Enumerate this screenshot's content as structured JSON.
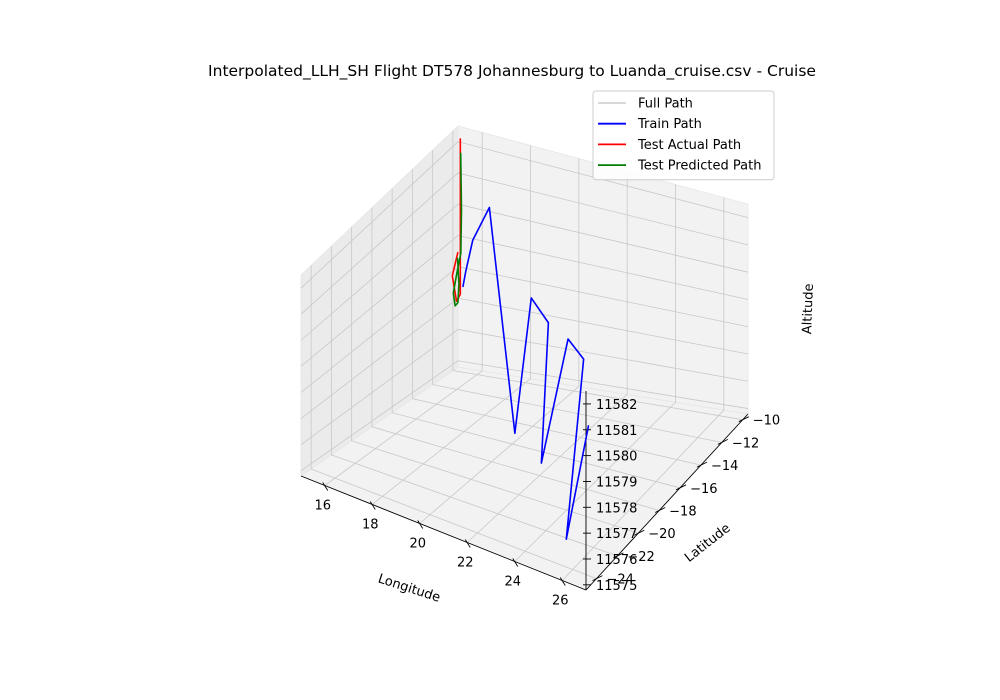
{
  "chart_data": {
    "type": "line",
    "projection": "3d",
    "title": "Interpolated_LLH_SH Flight DT578 Johannesburg to Luanda_cruise.csv - Cruise",
    "xlabel": "Longitude",
    "ylabel": "Latitude",
    "zlabel": "Altitude",
    "xlim": [
      15,
      27
    ],
    "ylim": [
      -25,
      -9.5
    ],
    "zlim": [
      11574.8,
      11582.5
    ],
    "xticks": [
      "16",
      "18",
      "20",
      "22",
      "24",
      "26"
    ],
    "yticks": [
      "−24",
      "−22",
      "−20",
      "−18",
      "−16",
      "−14",
      "−12",
      "−10"
    ],
    "zticks": [
      "11575",
      "11576",
      "11577",
      "11578",
      "11579",
      "11580",
      "11581",
      "11582"
    ],
    "legend_position": "upper-right",
    "grid": true,
    "series": [
      {
        "name": "Full Path",
        "color": "#d3d3d3",
        "points": []
      },
      {
        "name": "Train Path",
        "color": "#0000ff",
        "points": [
          [
            16.3,
            -12.1,
            11578.3
          ],
          [
            16.5,
            -12.3,
            11578.9
          ],
          [
            17.0,
            -12.8,
            11580.2
          ],
          [
            18.2,
            -14.0,
            11582.0
          ],
          [
            20.8,
            -17.6,
            11575.9
          ],
          [
            21.4,
            -17.4,
            11580.9
          ],
          [
            22.2,
            -17.6,
            11580.3
          ],
          [
            22.9,
            -19.9,
            11576.2
          ],
          [
            23.8,
            -19.4,
            11580.9
          ],
          [
            24.8,
            -20.2,
            11580.8
          ],
          [
            25.6,
            -23.7,
            11575.7
          ],
          [
            26.4,
            -23.4,
            11580.2
          ]
        ]
      },
      {
        "name": "Test Actual Path",
        "color": "#ff0000",
        "points": [
          [
            16.4,
            -12.6,
            11583.4
          ],
          [
            16.4,
            -12.6,
            11578.2
          ],
          [
            16.2,
            -12.5,
            11577.9
          ],
          [
            15.9,
            -12.2,
            11578.6
          ],
          [
            16.0,
            -11.9,
            11579.3
          ]
        ]
      },
      {
        "name": "Test Predicted Path",
        "color": "#008000",
        "points": [
          [
            15.7,
            -10.9,
            11582.2
          ],
          [
            15.9,
            -11.3,
            11580.5
          ],
          [
            16.0,
            -11.6,
            11579.2
          ],
          [
            15.9,
            -11.8,
            11578.5
          ],
          [
            15.9,
            -12.1,
            11578.0
          ],
          [
            16.1,
            -12.4,
            11577.7
          ],
          [
            16.3,
            -12.6,
            11577.9
          ],
          [
            16.3,
            -12.5,
            11578.5
          ],
          [
            16.2,
            -12.4,
            11579.3
          ]
        ]
      }
    ]
  }
}
